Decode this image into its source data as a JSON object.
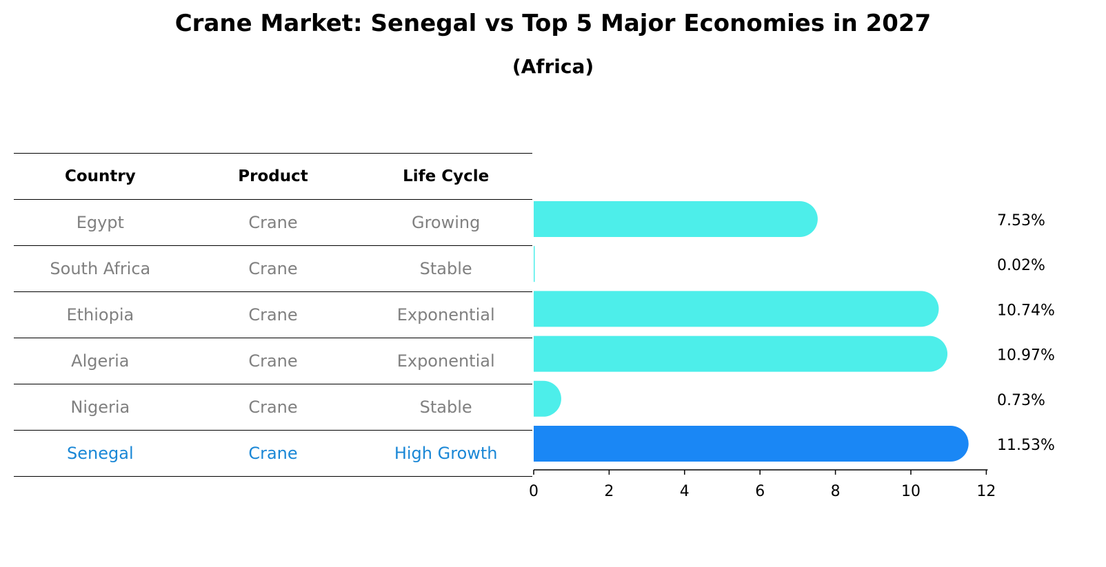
{
  "title": "Crane Market: Senegal vs Top 5 Major Economies in 2027",
  "subtitle": "(Africa)",
  "table": {
    "headers": [
      "Country",
      "Product",
      "Life Cycle"
    ],
    "rows": [
      [
        "Egypt",
        "Crane",
        "Growing"
      ],
      [
        "South Africa",
        "Crane",
        "Stable"
      ],
      [
        "Ethiopia",
        "Crane",
        "Exponential"
      ],
      [
        "Algeria",
        "Crane",
        "Exponential"
      ],
      [
        "Nigeria",
        "Crane",
        "Stable"
      ],
      [
        "Senegal",
        "Crane",
        "High Growth"
      ]
    ],
    "highlight_row": 5
  },
  "chart_data": {
    "type": "bar",
    "orientation": "horizontal",
    "categories": [
      "Egypt",
      "South Africa",
      "Ethiopia",
      "Algeria",
      "Nigeria",
      "Senegal"
    ],
    "values": [
      7.53,
      0.02,
      10.74,
      10.97,
      0.73,
      11.53
    ],
    "value_labels": [
      "7.53%",
      "0.02%",
      "10.74%",
      "10.97%",
      "0.73%",
      "11.53%"
    ],
    "xlim": [
      0,
      12
    ],
    "xticks": [
      0,
      2,
      4,
      6,
      8,
      10,
      12
    ],
    "colors": {
      "default": "#4deeea",
      "highlight": "#1a87f5"
    },
    "highlight_index": 5,
    "grid": false
  }
}
